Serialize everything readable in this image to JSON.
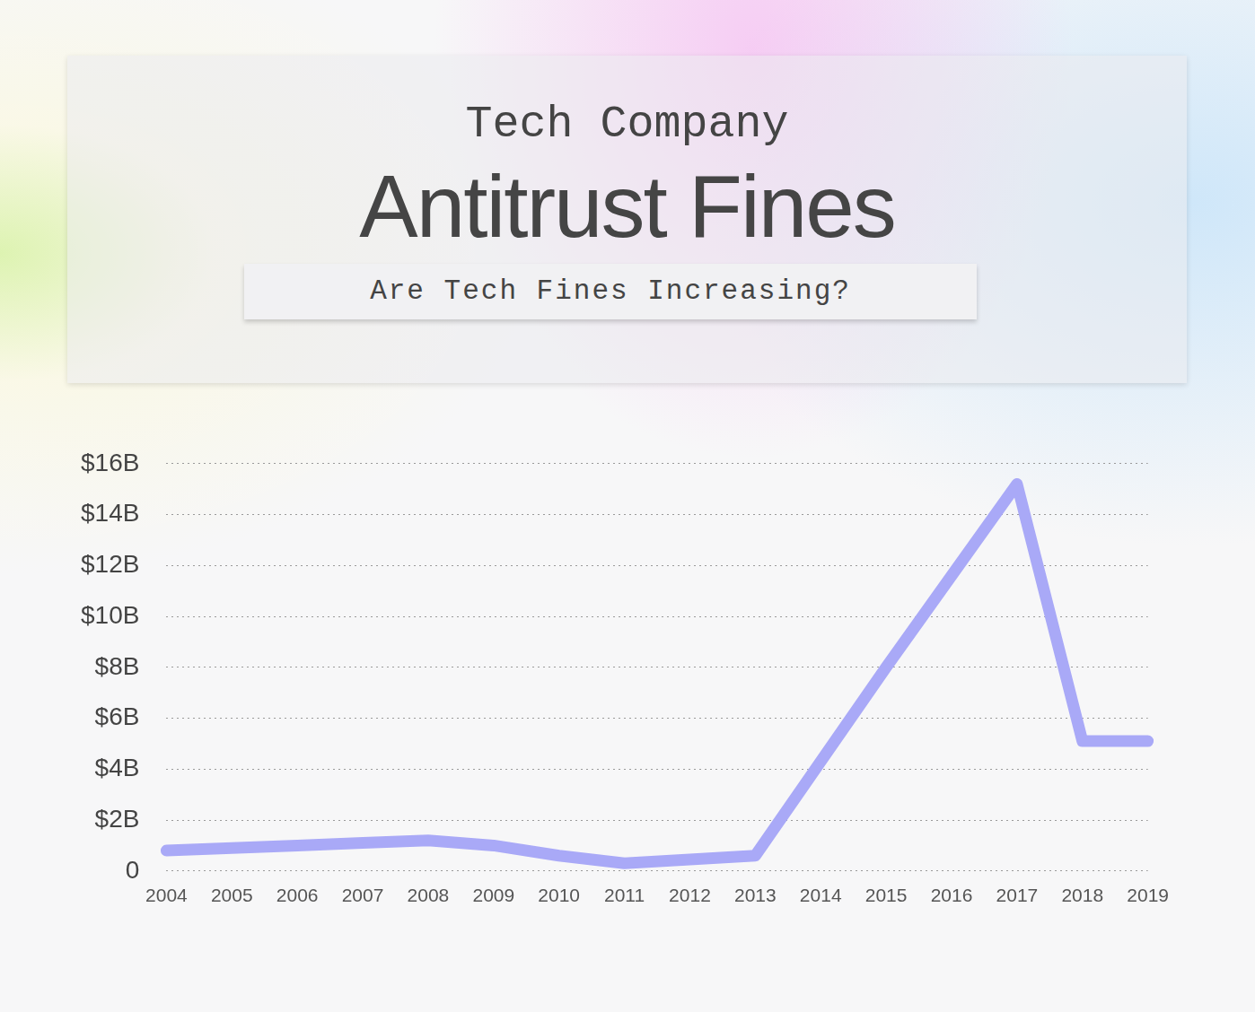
{
  "chart_data": {
    "type": "line",
    "title": "Antitrust Fines",
    "pretitle": "Tech Company",
    "subtitle": "Are Tech Fines Increasing?",
    "categories": [
      "2004",
      "2005",
      "2006",
      "2007",
      "2008",
      "2009",
      "2010",
      "2011",
      "2012",
      "2013",
      "2014",
      "2015",
      "2016",
      "2017",
      "2018",
      "2019"
    ],
    "values": [
      0.8,
      0.9,
      1.0,
      1.1,
      1.2,
      1.0,
      0.6,
      0.3,
      0.45,
      0.6,
      4.3,
      8.0,
      11.6,
      15.2,
      5.1,
      5.1
    ],
    "color": "#a9a9f7",
    "ylim": [
      0,
      16
    ],
    "yticks": [
      0,
      {
        "value": 2,
        "label": "$2B"
      },
      {
        "value": 4,
        "label": "$4B"
      },
      {
        "value": 6,
        "label": "$6B"
      },
      {
        "value": 8,
        "label": "$8B"
      },
      {
        "value": 10,
        "label": "$10B"
      },
      {
        "value": 12,
        "label": "$12B"
      },
      {
        "value": 14,
        "label": "$14B"
      },
      {
        "value": 16,
        "label": "$16B"
      }
    ],
    "grid": true
  }
}
